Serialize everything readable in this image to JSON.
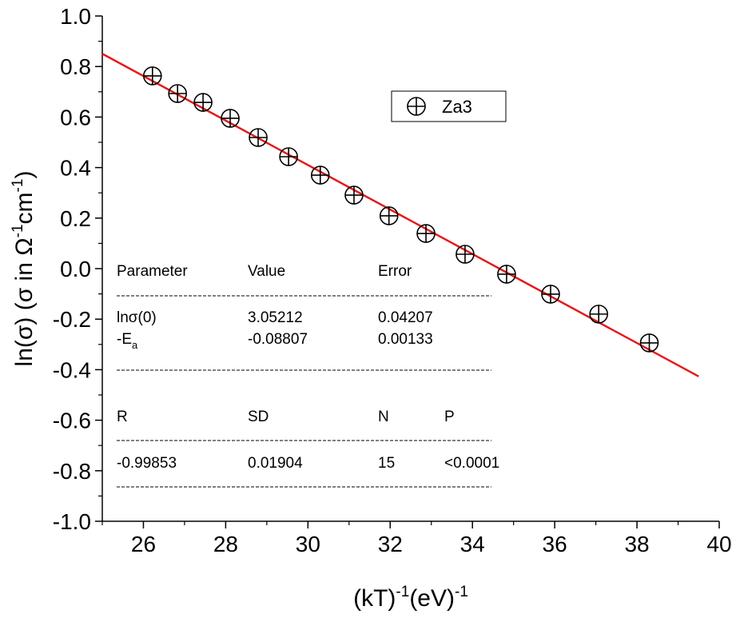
{
  "chart_data": {
    "type": "scatter",
    "xlabel": "(kT)",
    "xlabel_sup1": "-1",
    "xlabel_mid": "(eV)",
    "xlabel_sup2": "-1",
    "ylabel": "ln(σ) (σ in Ω",
    "ylabel_sup1": "-1",
    "ylabel_mid": "cm",
    "ylabel_sup2": "-1",
    "ylabel_end": ")",
    "xlim": [
      25,
      40
    ],
    "ylim": [
      -1.0,
      1.0
    ],
    "xticks": [
      "26",
      "28",
      "30",
      "32",
      "34",
      "36",
      "38",
      "40"
    ],
    "yticks": [
      "1.0",
      "0.8",
      "0.6",
      "0.4",
      "0.2",
      "0.0",
      "-0.2",
      "-0.4",
      "-0.6",
      "-0.8",
      "-1.0"
    ],
    "grid": false,
    "legend_position": "top-right",
    "series": [
      {
        "name": "Za3",
        "marker": "circle-plus",
        "x": [
          26.22,
          26.83,
          27.45,
          28.11,
          28.79,
          29.53,
          30.3,
          31.12,
          31.97,
          32.87,
          33.82,
          34.83,
          35.9,
          37.07,
          38.3
        ],
        "y": [
          0.763,
          0.693,
          0.658,
          0.595,
          0.519,
          0.443,
          0.37,
          0.291,
          0.209,
          0.139,
          0.057,
          -0.022,
          -0.101,
          -0.18,
          -0.294
        ]
      }
    ],
    "fit": {
      "type": "linear",
      "color": "#e41a1c",
      "intercept": 3.05212,
      "slope": -0.08807,
      "x_range": [
        25,
        39.5
      ]
    },
    "fit_table": {
      "header": [
        "Parameter",
        "Value",
        "Error"
      ],
      "rows": [
        {
          "param": "lnσ(0)",
          "value": "3.05212",
          "error": "0.04207"
        },
        {
          "param": "-E",
          "param_sub": "a",
          "value": "-0.08807",
          "error": "0.00133"
        }
      ],
      "stats_header": [
        "R",
        "SD",
        "N",
        "P"
      ],
      "stats_values": [
        "-0.99853",
        "0.01904",
        "15",
        "<0.0001"
      ]
    }
  }
}
